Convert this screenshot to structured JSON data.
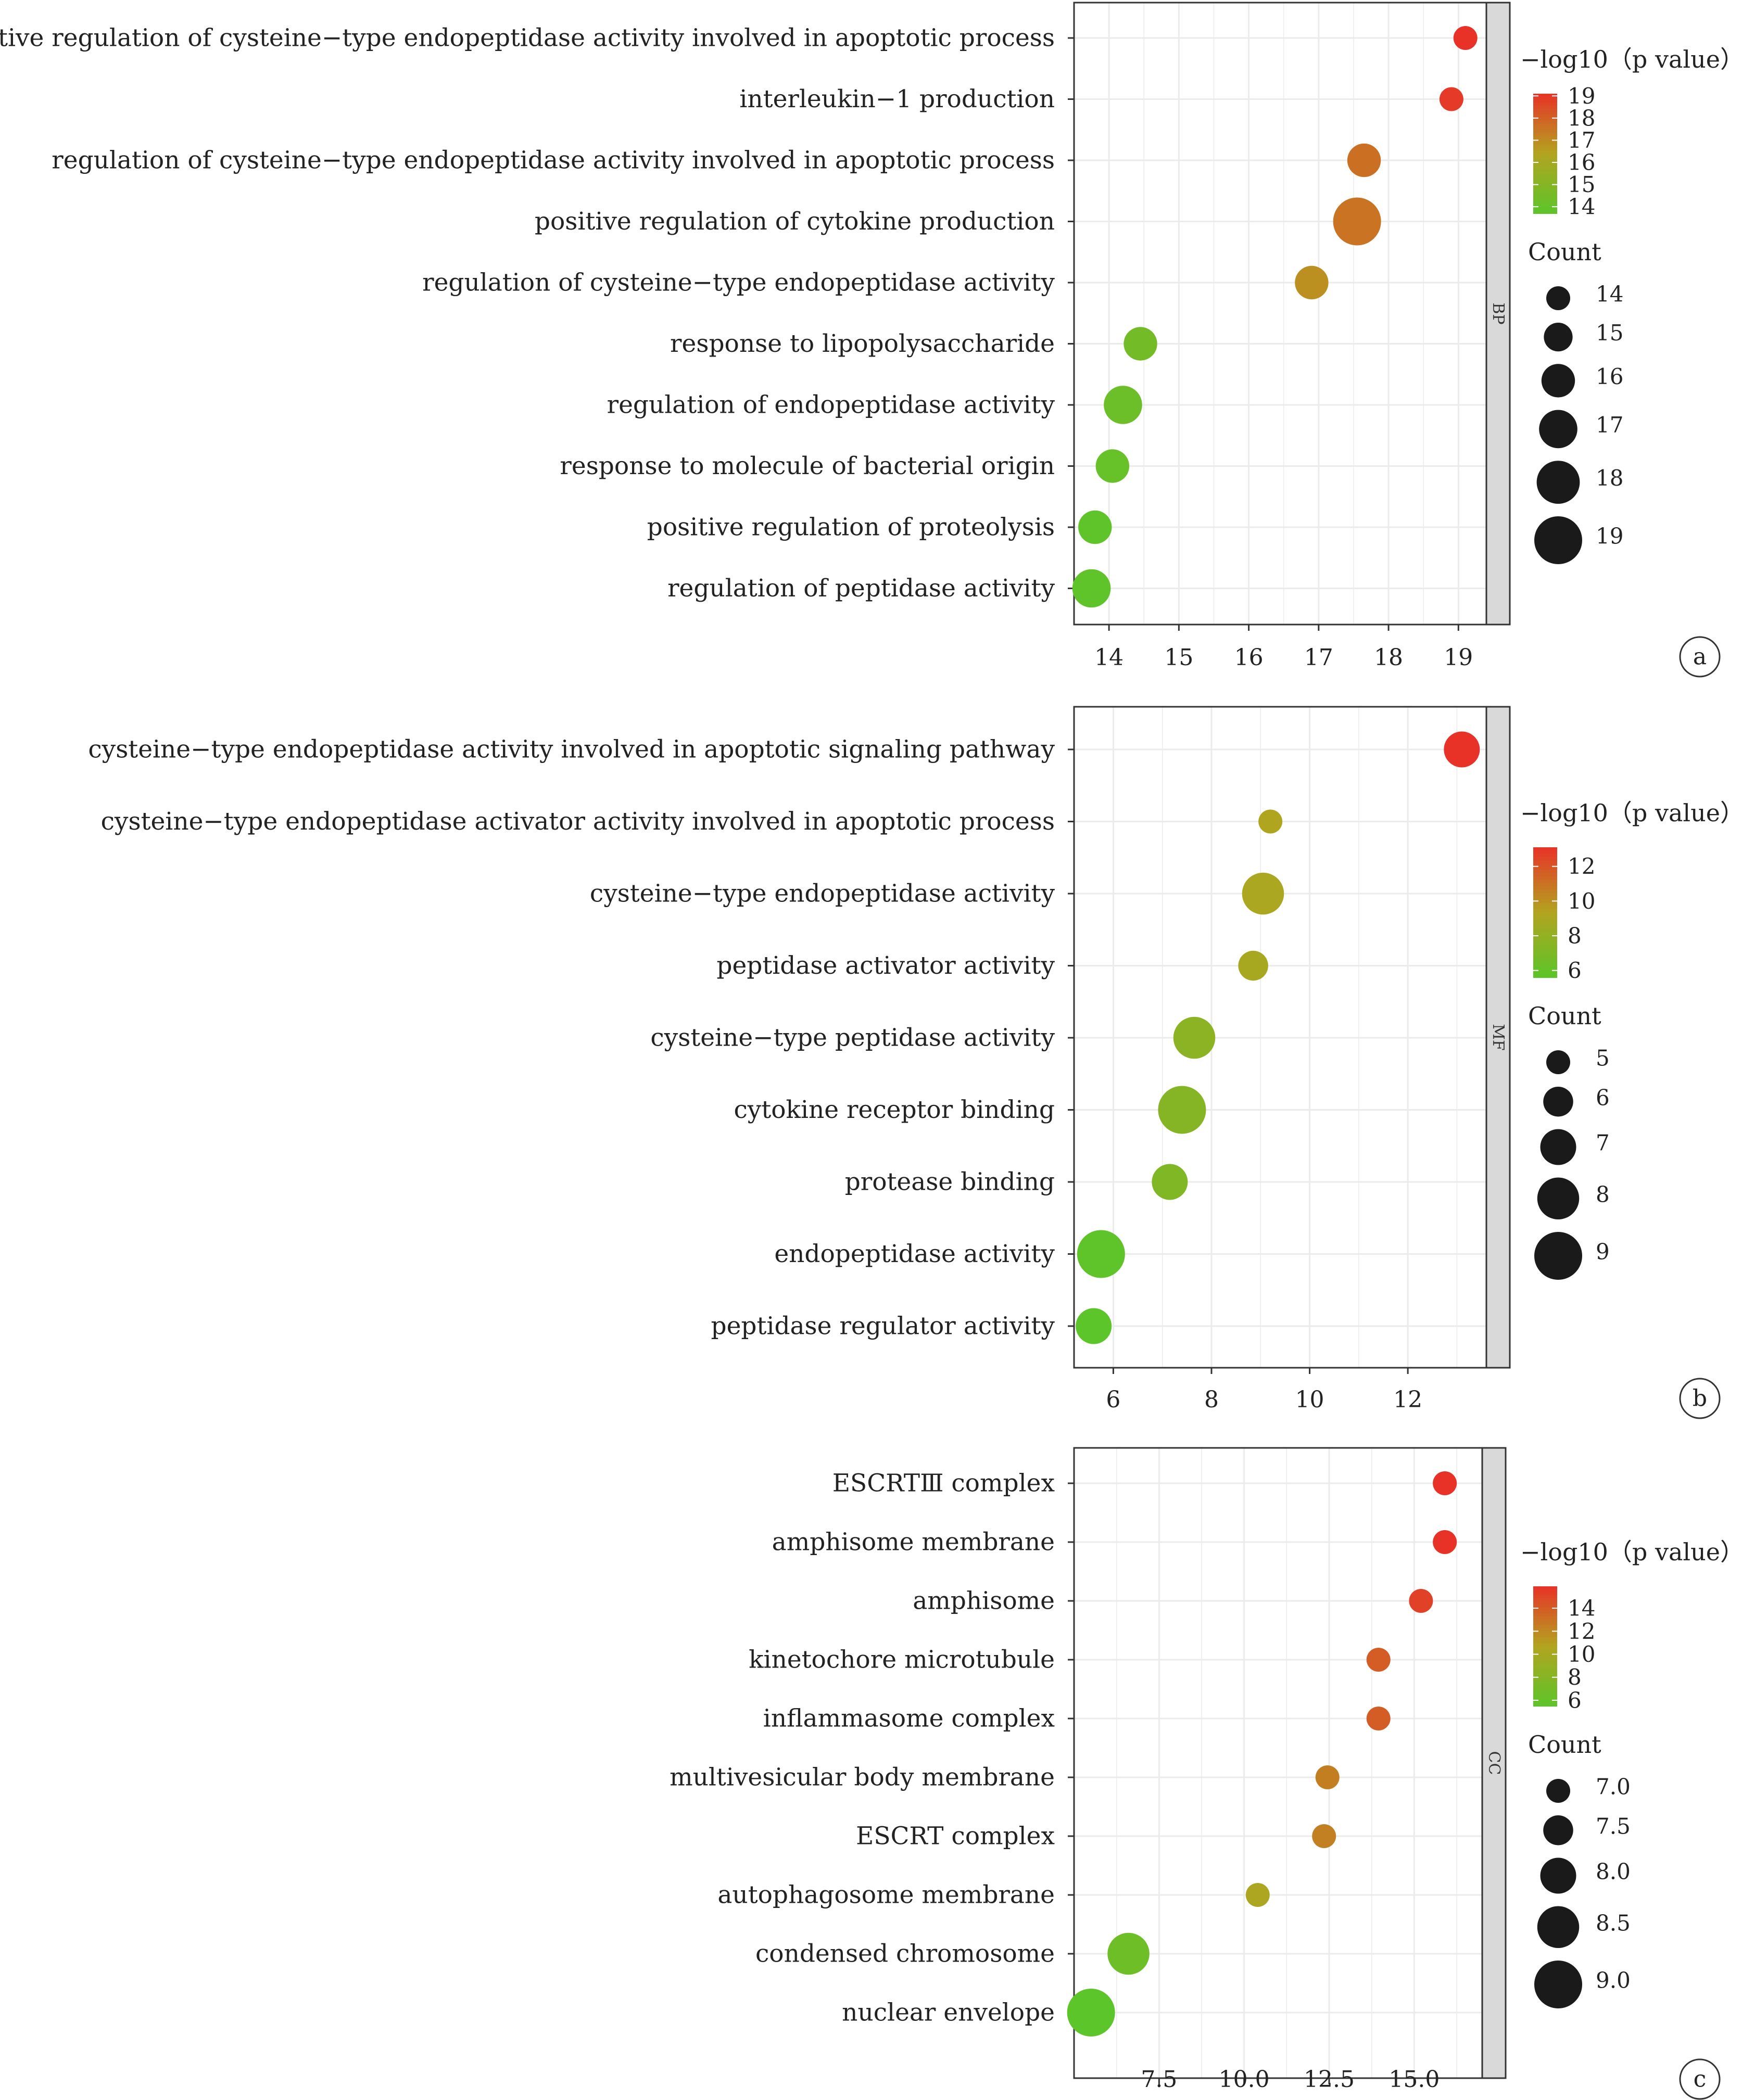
{
  "legend": {
    "color_title": "−log10（p value）",
    "size_title": "Count"
  },
  "chart_data": [
    {
      "type": "scatter",
      "panel_label": "a",
      "facet": "BP",
      "xlim": [
        13.5,
        19.4
      ],
      "x_ticks": [
        14,
        15,
        16,
        17,
        18,
        19
      ],
      "x_tick_labels": [
        "14",
        "15",
        "16",
        "17",
        "18",
        "19"
      ],
      "color_scale": {
        "min": 13.7,
        "max": 19.1,
        "ticks": [
          14,
          15,
          16,
          17,
          18,
          19
        ]
      },
      "count_legend": [
        14,
        15,
        16,
        17,
        18,
        19
      ],
      "count_range": [
        14,
        19
      ],
      "grid": true,
      "legend_position": "right",
      "terms": [
        {
          "label": "positive regulation of cysteine−type endopeptidase activity involved in apoptotic process",
          "x": 19.1,
          "neglog10p": 19.1,
          "count": 14
        },
        {
          "label": "interleukin−1 production",
          "x": 18.9,
          "neglog10p": 18.9,
          "count": 14
        },
        {
          "label": "regulation of cysteine−type endopeptidase activity involved in apoptotic process",
          "x": 17.65,
          "neglog10p": 17.65,
          "count": 16
        },
        {
          "label": "positive regulation of cytokine production",
          "x": 17.55,
          "neglog10p": 17.55,
          "count": 19
        },
        {
          "label": "regulation of cysteine−type endopeptidase activity",
          "x": 16.9,
          "neglog10p": 16.9,
          "count": 16
        },
        {
          "label": "response to lipopolysaccharide",
          "x": 14.45,
          "neglog10p": 14.45,
          "count": 16
        },
        {
          "label": "regulation of endopeptidase activity",
          "x": 14.2,
          "neglog10p": 14.2,
          "count": 17
        },
        {
          "label": "response to molecule of bacterial origin",
          "x": 14.05,
          "neglog10p": 14.05,
          "count": 16
        },
        {
          "label": "positive regulation of proteolysis",
          "x": 13.8,
          "neglog10p": 13.8,
          "count": 16
        },
        {
          "label": "regulation of peptidase activity",
          "x": 13.75,
          "neglog10p": 13.75,
          "count": 17
        }
      ]
    },
    {
      "type": "scatter",
      "panel_label": "b",
      "facet": "MF",
      "xlim": [
        5.2,
        13.6
      ],
      "x_ticks": [
        6,
        8,
        10,
        12
      ],
      "x_tick_labels": [
        "6",
        "8",
        "10",
        "12"
      ],
      "color_scale": {
        "min": 5.6,
        "max": 13.1,
        "ticks": [
          6,
          8,
          10,
          12
        ]
      },
      "count_legend": [
        5,
        6,
        7,
        8,
        9
      ],
      "count_range": [
        5,
        9
      ],
      "grid": true,
      "legend_position": "right",
      "terms": [
        {
          "label": "cysteine−type endopeptidase activity involved in apoptotic signaling pathway",
          "x": 13.1,
          "neglog10p": 13.1,
          "count": 7
        },
        {
          "label": "cysteine−type endopeptidase activator activity involved in apoptotic process",
          "x": 9.2,
          "neglog10p": 9.2,
          "count": 5
        },
        {
          "label": "cysteine−type endopeptidase activity",
          "x": 9.05,
          "neglog10p": 9.05,
          "count": 8
        },
        {
          "label": "peptidase activator activity",
          "x": 8.85,
          "neglog10p": 8.85,
          "count": 6
        },
        {
          "label": "cysteine−type peptidase activity",
          "x": 7.65,
          "neglog10p": 7.65,
          "count": 8
        },
        {
          "label": "cytokine receptor binding",
          "x": 7.4,
          "neglog10p": 7.4,
          "count": 9
        },
        {
          "label": "protease binding",
          "x": 7.15,
          "neglog10p": 7.15,
          "count": 7
        },
        {
          "label": "endopeptidase activity",
          "x": 5.75,
          "neglog10p": 5.75,
          "count": 9
        },
        {
          "label": "peptidase regulator activity",
          "x": 5.6,
          "neglog10p": 5.6,
          "count": 7
        }
      ]
    },
    {
      "type": "scatter",
      "panel_label": "c",
      "facet": "CC",
      "xlim": [
        5.0,
        17.0
      ],
      "x_ticks": [
        7.5,
        10.0,
        12.5,
        15.0
      ],
      "x_tick_labels": [
        "7.5",
        "10.0",
        "12.5",
        "15.0"
      ],
      "color_scale": {
        "min": 5.5,
        "max": 15.9,
        "ticks": [
          6,
          8,
          10,
          12,
          14
        ]
      },
      "count_legend": [
        7.0,
        7.5,
        8.0,
        8.5,
        9.0
      ],
      "count_legend_labels": [
        "7.0",
        "7.5",
        "8.0",
        "8.5",
        "9.0"
      ],
      "count_range": [
        7,
        9
      ],
      "grid": true,
      "legend_position": "right",
      "terms": [
        {
          "label": "ESCRTⅢ complex",
          "x": 15.9,
          "neglog10p": 15.9,
          "count": 7
        },
        {
          "label": "amphisome membrane",
          "x": 15.9,
          "neglog10p": 15.9,
          "count": 7
        },
        {
          "label": "amphisome",
          "x": 15.2,
          "neglog10p": 15.2,
          "count": 7
        },
        {
          "label": "kinetochore microtubule",
          "x": 13.95,
          "neglog10p": 13.95,
          "count": 7
        },
        {
          "label": "inflammasome complex",
          "x": 13.95,
          "neglog10p": 13.95,
          "count": 7
        },
        {
          "label": "multivesicular body membrane",
          "x": 12.45,
          "neglog10p": 12.45,
          "count": 7
        },
        {
          "label": "ESCRT complex",
          "x": 12.35,
          "neglog10p": 12.35,
          "count": 7
        },
        {
          "label": "autophagosome membrane",
          "x": 10.4,
          "neglog10p": 10.4,
          "count": 7
        },
        {
          "label": "condensed chromosome",
          "x": 6.6,
          "neglog10p": 6.6,
          "count": 8.5
        },
        {
          "label": "nuclear envelope",
          "x": 5.5,
          "neglog10p": 5.5,
          "count": 9
        }
      ]
    }
  ],
  "colors": {
    "low": "#5cc52a",
    "mid": "#b2a41f",
    "high": "#e83228",
    "grid": "#ebebeb",
    "strip_fill": "#d9d9d9",
    "point_legend": "#1a1a1a"
  }
}
